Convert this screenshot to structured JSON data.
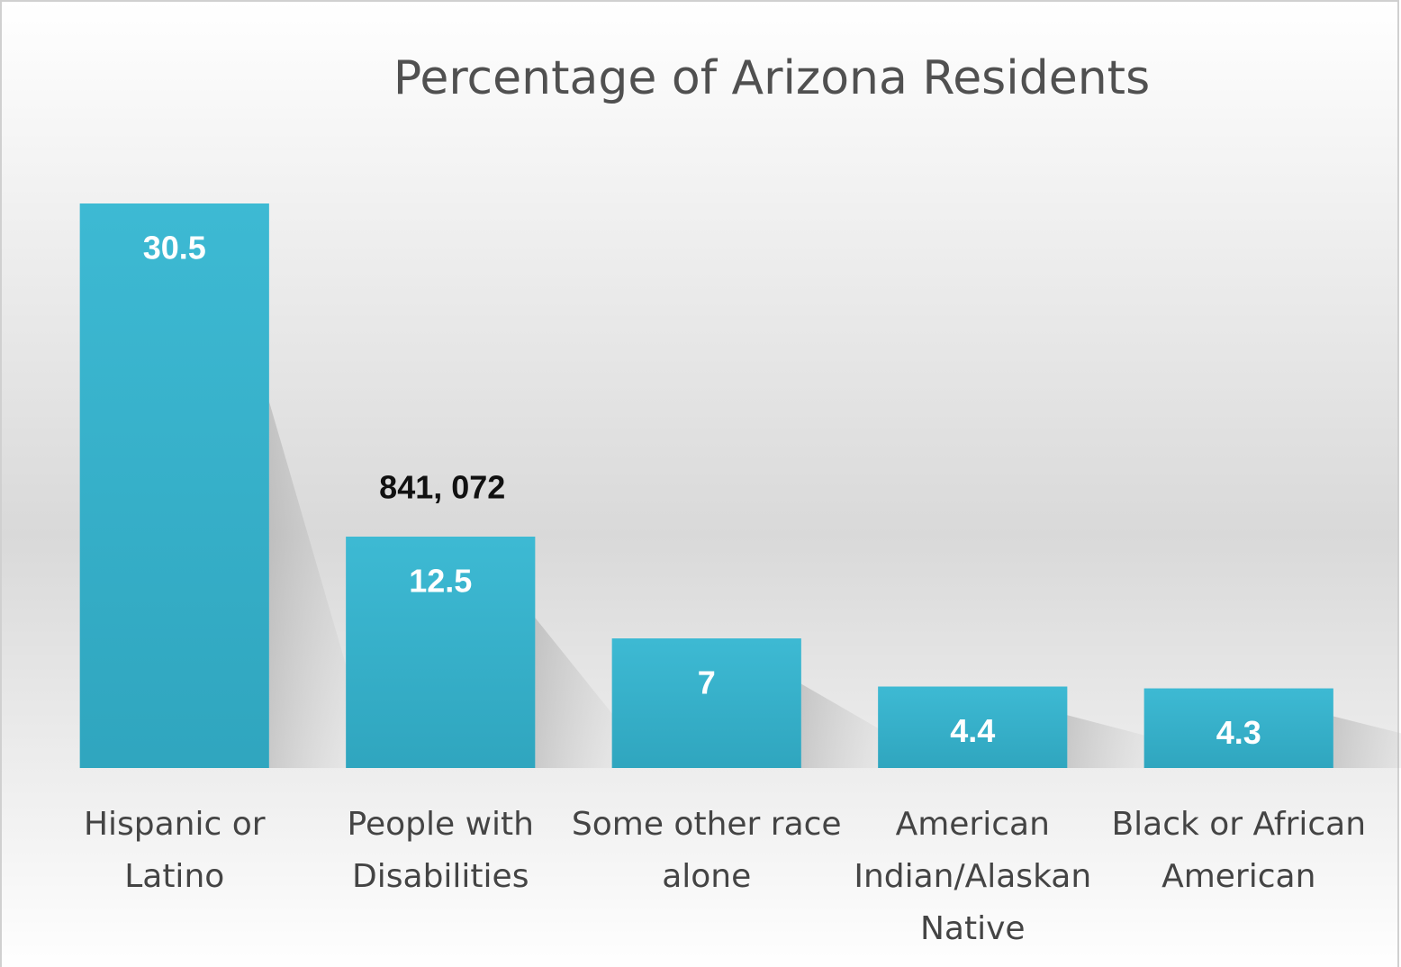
{
  "chart_data": {
    "type": "bar",
    "title": "Percentage of  Arizona Residents",
    "categories": [
      "Hispanic or Latino",
      "People with Disabilities",
      "Some other race alone",
      "American Indian/Alaskan Native",
      "Black or African American"
    ],
    "values": [
      30.5,
      12.5,
      7,
      4.4,
      4.3
    ],
    "color": "#36b0c9",
    "annotations": [
      {
        "text": "841, 072",
        "category": 1
      }
    ]
  }
}
